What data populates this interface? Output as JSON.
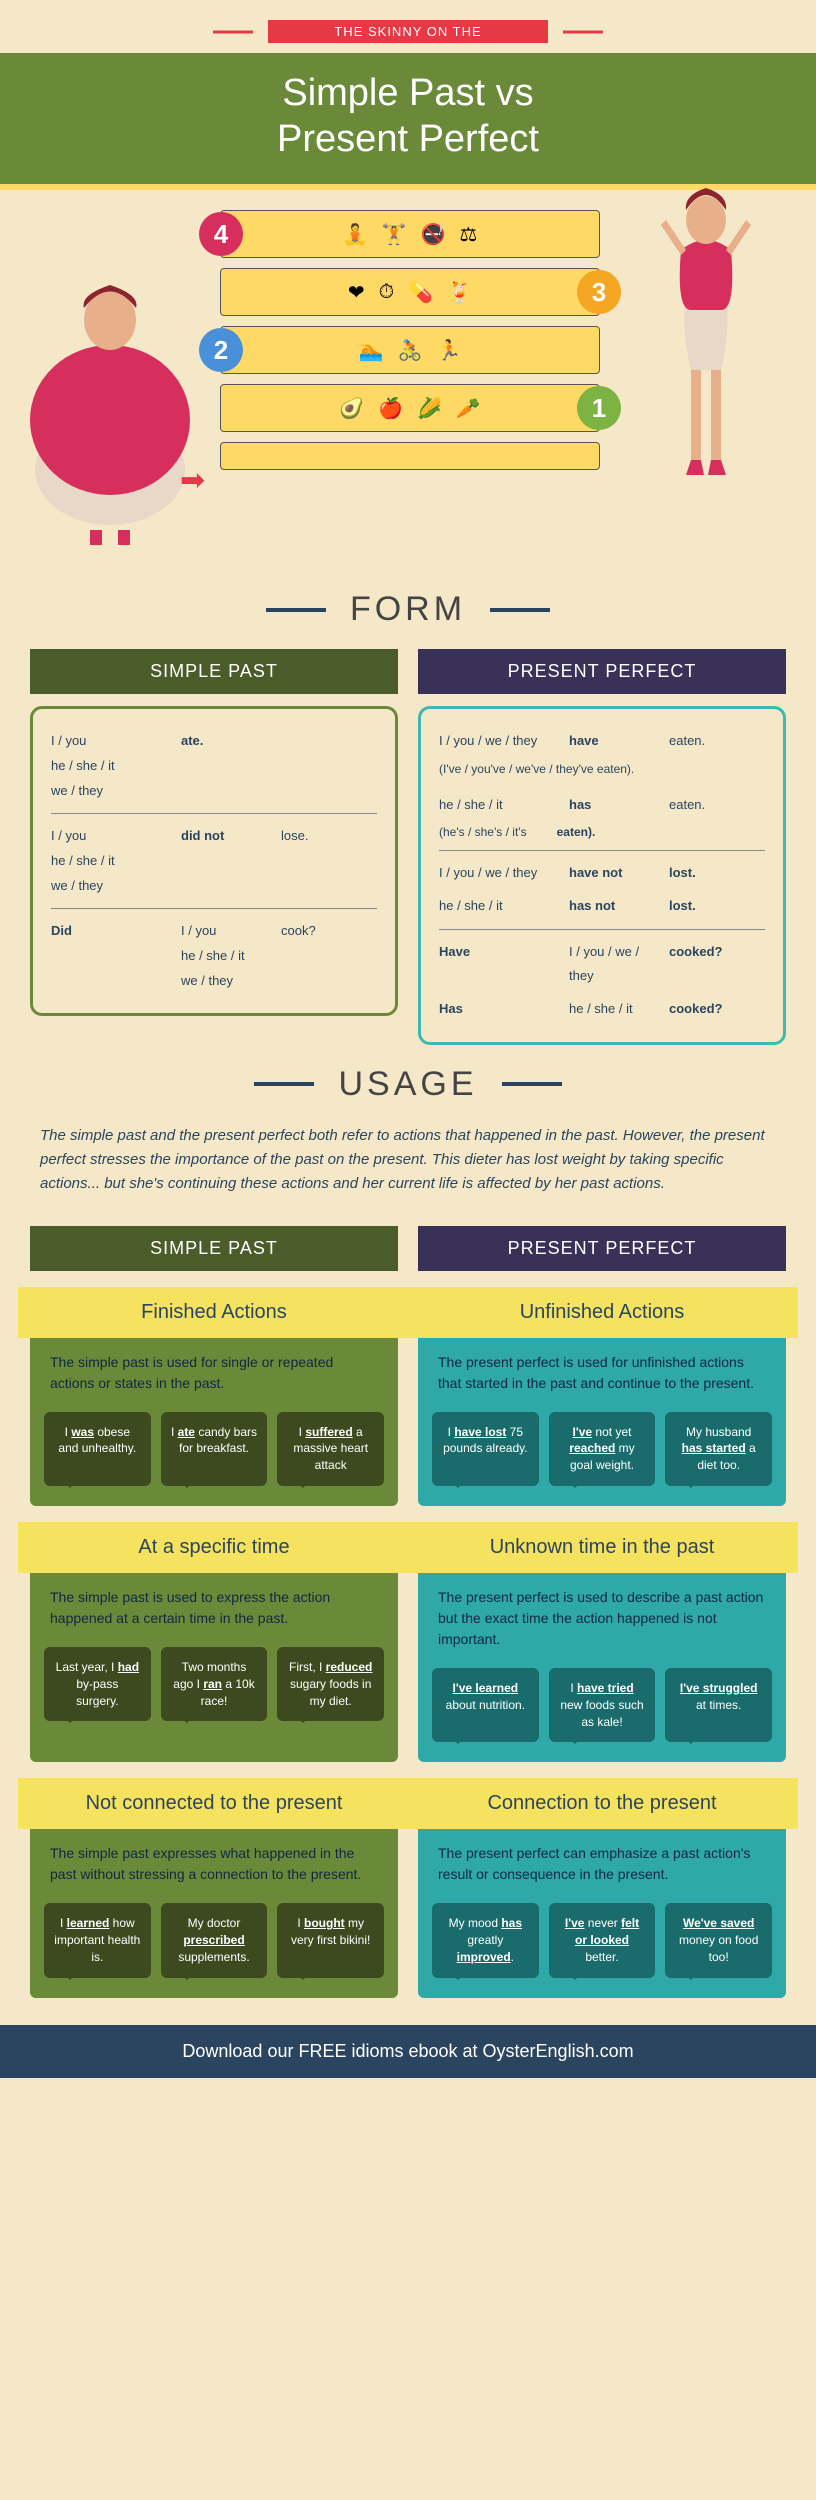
{
  "header": {
    "banner": "THE SKINNY ON THE",
    "title_l1": "Simple Past vs",
    "title_l2": "Present Perfect"
  },
  "steps": {
    "row4_icons": [
      "🧘",
      "🏋",
      "🚭",
      "⚖"
    ],
    "row3_icons": [
      "❤",
      "⏱",
      "💊",
      "🍹"
    ],
    "row2_icons": [
      "🏊",
      "🚴",
      "🏃"
    ],
    "row1_icons": [
      "🥑",
      "🍎",
      "🌽",
      "🥕"
    ]
  },
  "dividers": {
    "form": "FORM",
    "usage": "USAGE"
  },
  "cols": {
    "sp": "SIMPLE PAST",
    "pp": "PRESENT PERFECT"
  },
  "form_sp": {
    "r1_sub": "I / you\nhe / she / it\nwe / they",
    "r1_verb": "ate.",
    "r2_sub": "I / you\nhe / she / it\nwe / they",
    "r2_aux": "did not",
    "r2_verb": "lose.",
    "r3_aux": "Did",
    "r3_sub": "I / you\nhe / she / it\nwe / they",
    "r3_verb": "cook?"
  },
  "form_pp": {
    "r1_sub": "I / you / we / they",
    "r1_aux": "have",
    "r1_verb": "eaten.",
    "r1b": "(I've / you've / we've / they've eaten).",
    "r2_sub": "he / she / it",
    "r2_aux": "has",
    "r2_verb": "eaten.",
    "r2b": "(he's / she's / it's",
    "r2b2": "eaten).",
    "r3_sub": "I / you / we / they",
    "r3_aux": "have not",
    "r3_verb": "lost.",
    "r4_sub": "he / she / it",
    "r4_aux": "has not",
    "r4_verb": "lost.",
    "r5_aux": "Have",
    "r5_sub": "I / you / we / they",
    "r5_verb": "cooked?",
    "r6_aux": "Has",
    "r6_sub": "he / she / it",
    "r6_verb": "cooked?"
  },
  "usage_intro": "The simple past and the present perfect both refer to actions that happened in the past. However, the present perfect stresses the importance of the past on the present. This dieter has lost weight by taking specific actions... but she's continuing these actions and her current life is affected by her past actions.",
  "cards": {
    "sp1": {
      "title": "Finished Actions",
      "desc": "The simple past is used for single or repeated actions or states in the past.",
      "b1": "I <u>was</u> obese and unhealthy.",
      "b2": "I <u>ate</u> candy bars for breakfast.",
      "b3": "I <u>suffered</u> a massive heart attack"
    },
    "pp1": {
      "title": "Unfinished Actions",
      "desc": "The present perfect is used for unfinished actions that started in the past and continue to the present.",
      "b1": "I <u>have lost</u> 75 pounds already.",
      "b2": "<u>I've</u> not yet <u>reached</u> my goal weight.",
      "b3": "My husband <u>has started</u> a diet too."
    },
    "sp2": {
      "title": "At a specific time",
      "desc": "The simple past is used to express the action happened at a certain time in the past.",
      "b1": "Last year, I <u>had</u> by-pass surgery.",
      "b2": "Two months ago I <u>ran</u> a 10k race!",
      "b3": "First, I <u>reduced</u> sugary foods in my diet."
    },
    "pp2": {
      "title": "Unknown time in the past",
      "desc": "The present perfect is used to describe a past action but the exact time the action happened is not important.",
      "b1": "<u>I've learned</u> about nutrition.",
      "b2": "I <u>have tried</u> new foods such as kale!",
      "b3": "<u>I've struggled</u> at times."
    },
    "sp3": {
      "title": "Not connected to the present",
      "desc": "The simple past expresses what happened in the past without stressing a connection to the present.",
      "b1": "I <u>learned</u> how important health is.",
      "b2": "My doctor <u>prescribed</u> supplements.",
      "b3": "I <u>bought</u> my very first bikini!"
    },
    "pp3": {
      "title": "Connection to the present",
      "desc": "The present perfect can emphasize a past action's result or consequence in the present.",
      "b1": "My mood <u>has</u> greatly <u>improved</u>.",
      "b2": "<u>I've</u> never <u>felt or looked</u> better.",
      "b3": "<u>We've saved</u> money on food too!"
    }
  },
  "footer": "Download our FREE idioms ebook at OysterEnglish.com",
  "colors": {
    "bg": "#f5e8c8",
    "olive": "#6a8a3a",
    "olive_dark": "#4a5c2a",
    "purple": "#3a3158",
    "teal": "#2fa8a8",
    "yellow": "#f5e35f",
    "red": "#e63946",
    "pink": "#d62f5e",
    "navy": "#2b4560"
  }
}
